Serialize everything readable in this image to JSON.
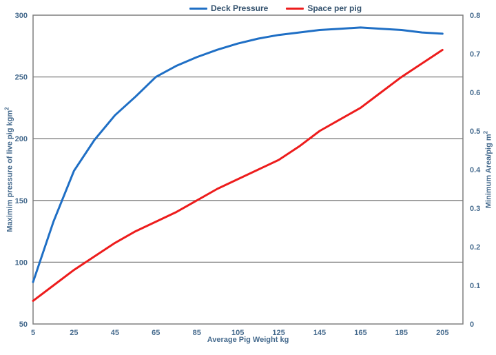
{
  "chart": {
    "legend_items": [
      {
        "label": "Deck Pressure",
        "color": "#1f6fc5"
      },
      {
        "label": "Space per pig",
        "color": "#ed1c1c"
      }
    ],
    "x_axis": {
      "title": "Average Pig Weight kg",
      "ticks": [
        "5",
        "25",
        "45",
        "65",
        "85",
        "105",
        "125",
        "145",
        "165",
        "185",
        "205"
      ]
    },
    "y_left": {
      "title_base": "Maximim pressure of live pig kgm",
      "title_sup": "2",
      "ticks": [
        "50",
        "100",
        "150",
        "200",
        "250",
        "300"
      ]
    },
    "y_right": {
      "title_base": "Minimum Area/pig m",
      "title_sup": "2",
      "ticks": [
        "0",
        "0.1",
        "0.2",
        "0.3",
        "0.4",
        "0.5",
        "0.6",
        "0.7",
        "0.8"
      ]
    },
    "colors": {
      "grid": "#7f7f7f",
      "border": "#7f7f7f",
      "tick_text": "#456a8d"
    }
  },
  "chart_data": {
    "type": "line",
    "title": "",
    "xlabel": "Average Pig Weight kg",
    "ylabel_left": "Maximim pressure of live pig kgm2",
    "ylabel_right": "Minimum Area/pig m2",
    "x": [
      5,
      15,
      25,
      35,
      45,
      55,
      65,
      75,
      85,
      95,
      105,
      115,
      125,
      135,
      145,
      155,
      165,
      175,
      185,
      195,
      205
    ],
    "series": [
      {
        "name": "Deck Pressure",
        "axis": "left",
        "color": "#1f6fc5",
        "values": [
          84,
          133,
          174,
          199,
          219,
          234,
          250,
          259,
          266,
          272,
          277,
          281,
          284,
          286,
          288,
          289,
          290,
          289,
          288,
          286,
          285
        ]
      },
      {
        "name": "Space per pig",
        "axis": "right",
        "color": "#ed1c1c",
        "values": [
          0.06,
          0.1,
          0.14,
          0.175,
          0.21,
          0.24,
          0.265,
          0.29,
          0.32,
          0.35,
          0.375,
          0.4,
          0.425,
          0.46,
          0.5,
          0.53,
          0.56,
          0.6,
          0.64,
          0.675,
          0.71
        ]
      }
    ],
    "xlim": [
      5,
      215
    ],
    "x_ticks": [
      5,
      25,
      45,
      65,
      85,
      105,
      125,
      145,
      165,
      185,
      205
    ],
    "ylim_left": [
      50,
      300
    ],
    "ylim_right": [
      0,
      0.8
    ],
    "grid": "horizontal-major",
    "legend_position": "top-center"
  }
}
